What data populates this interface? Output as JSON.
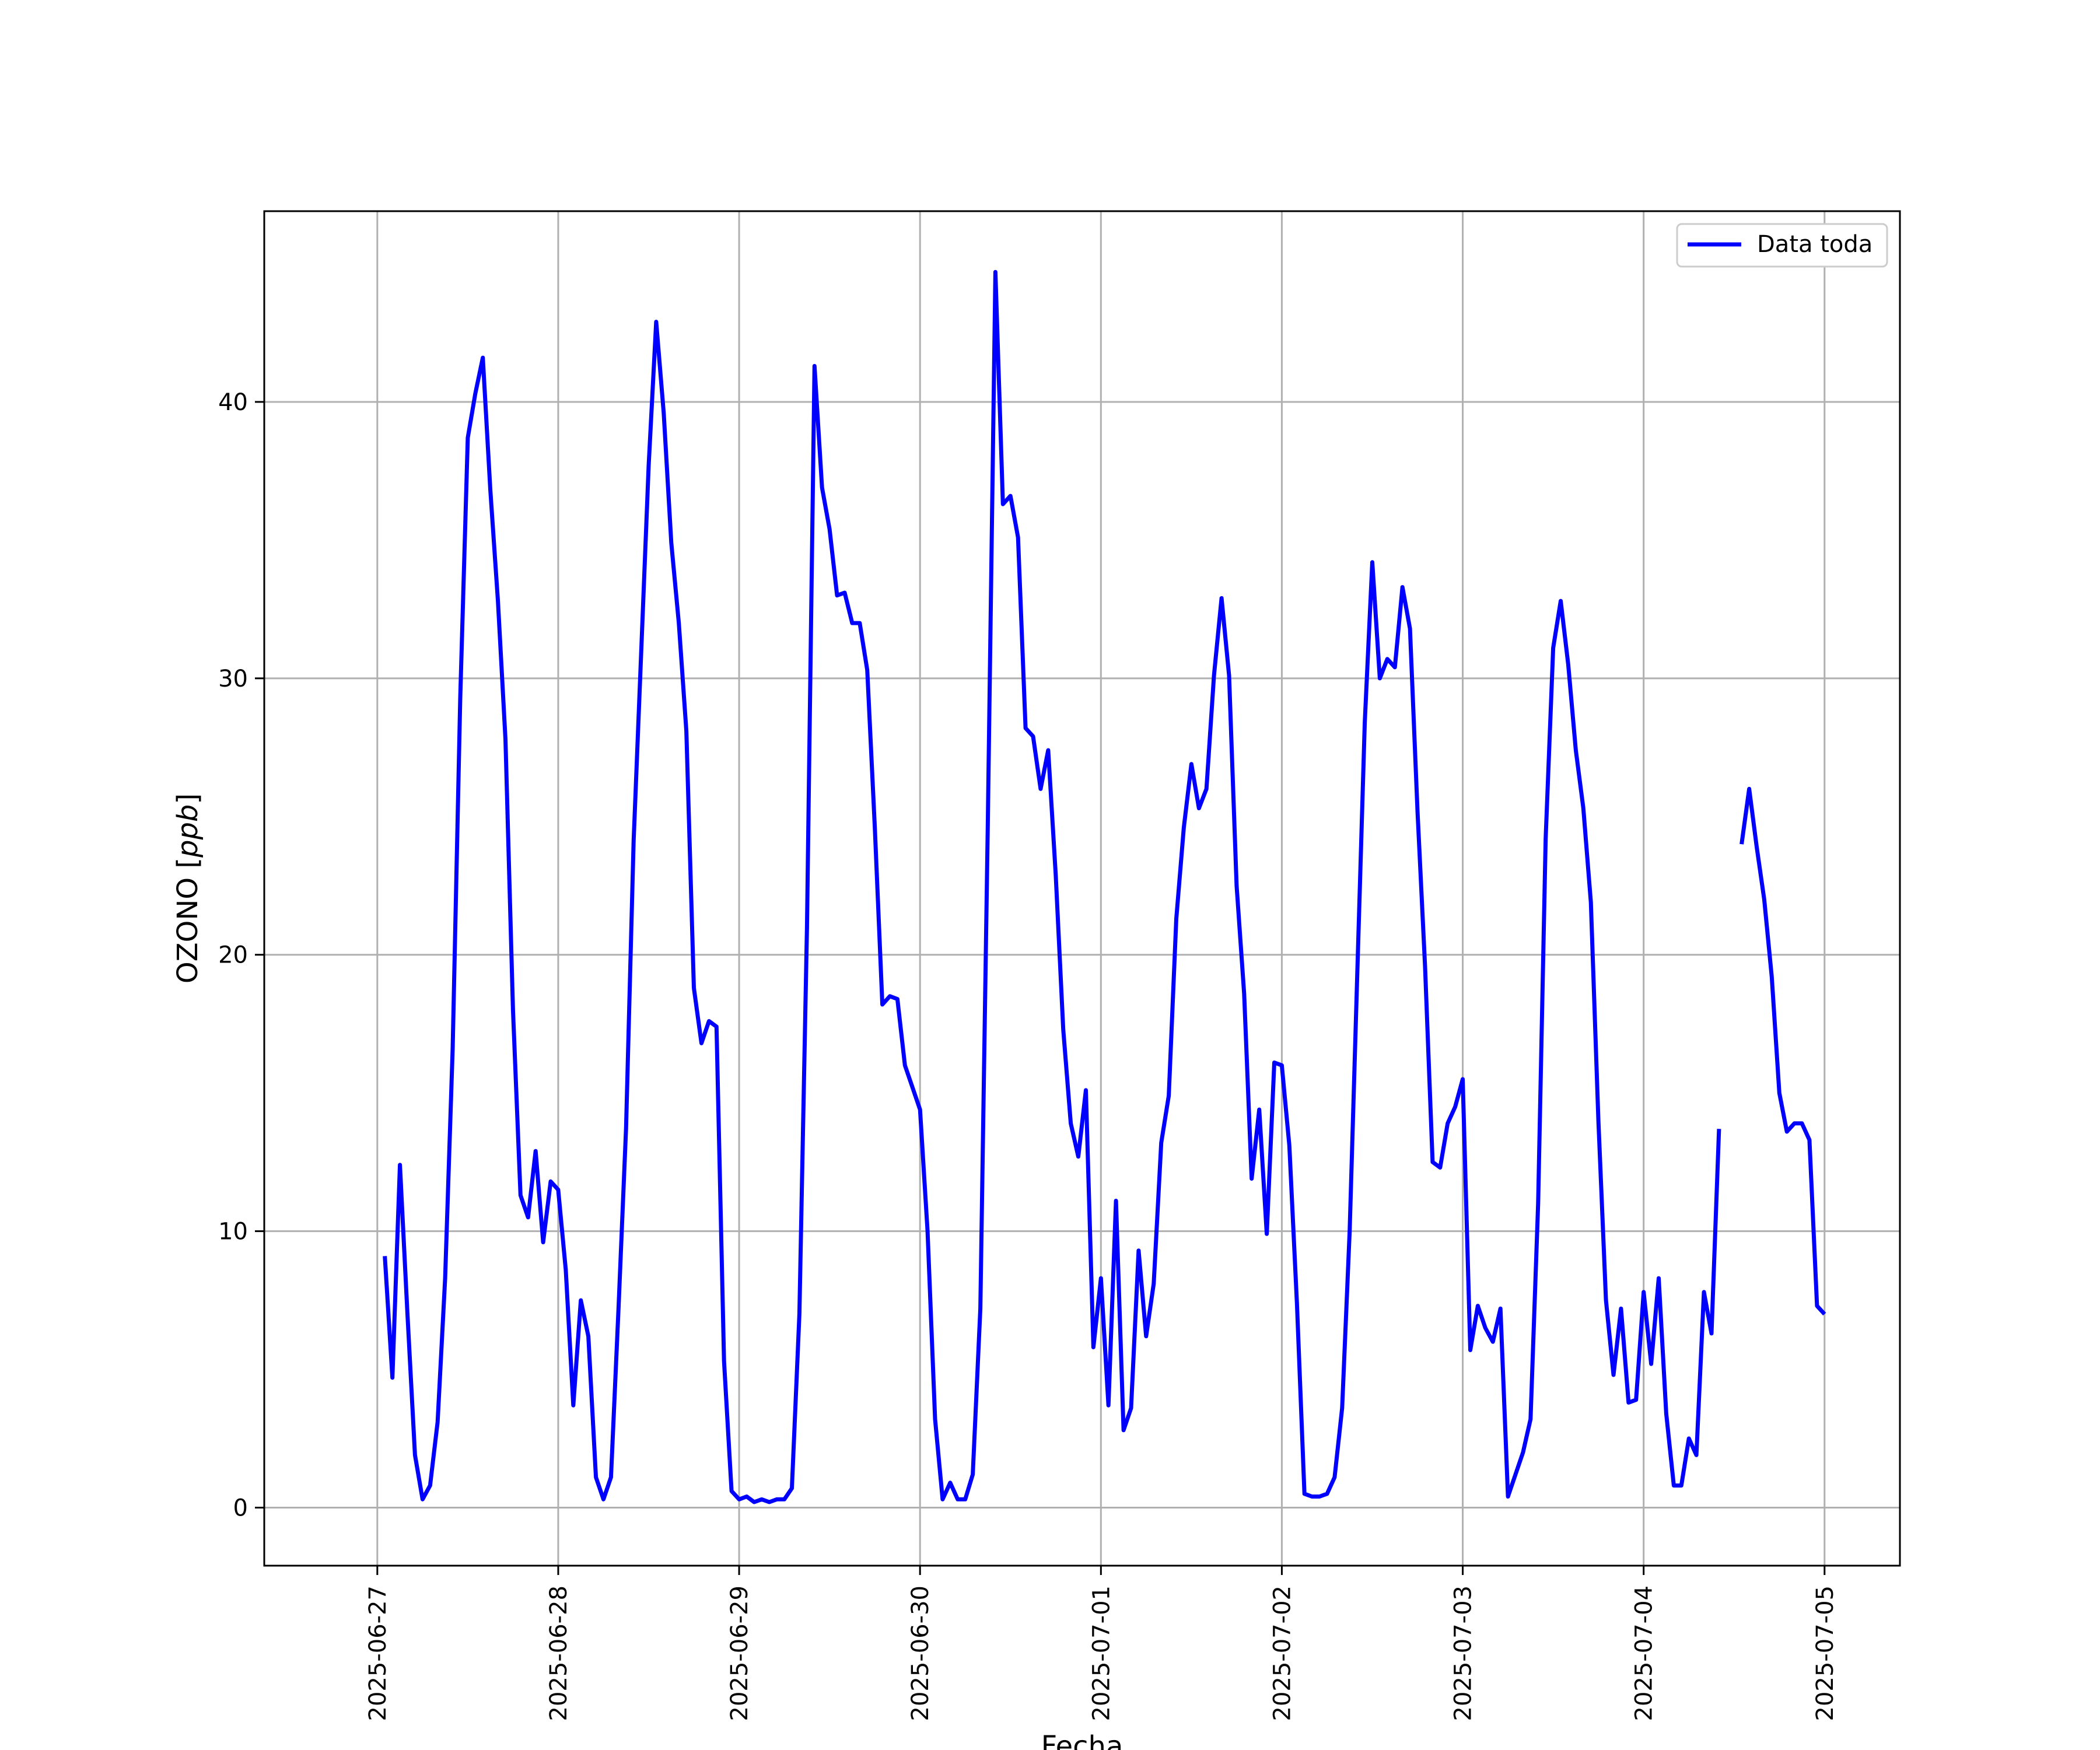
{
  "chart_data": {
    "type": "line",
    "title": "",
    "xlabel": "Fecha",
    "ylabel_text": "OZONO",
    "ylabel_unit": "ppb",
    "x_ticks": [
      "2025-06-27",
      "2025-06-28",
      "2025-06-29",
      "2025-06-30",
      "2025-07-01",
      "2025-07-02",
      "2025-07-03",
      "2025-07-04",
      "2025-07-05"
    ],
    "y_ticks": [
      0,
      10,
      20,
      30,
      40
    ],
    "xlim": [
      "2025-06-26 09:00",
      "2025-07-05 10:00"
    ],
    "ylim": [
      -2.1,
      46.9
    ],
    "grid": true,
    "legend_position": "top-right",
    "series": [
      {
        "name": "Data toda",
        "color": "#0000ff",
        "segments": [
          {
            "start": "2025-06-27 01:00",
            "step_hours": 1,
            "values": [
              9.1,
              4.7,
              12.4,
              7.0,
              1.9,
              0.3,
              0.8,
              3.1,
              8.3,
              16.6,
              29.3,
              38.7,
              40.3,
              41.6,
              36.8,
              32.8,
              27.8,
              18.0,
              11.3,
              10.5,
              12.9,
              9.6,
              11.8,
              11.5,
              8.6,
              3.7,
              7.5,
              6.2,
              1.1,
              0.3,
              1.1,
              7.2,
              13.7,
              24.1,
              30.9,
              37.7,
              42.9,
              39.6,
              34.9,
              32.0,
              28.1,
              18.8,
              16.8,
              17.6,
              17.4,
              5.3,
              0.6,
              0.3,
              0.4,
              0.2,
              0.3,
              0.2,
              0.3,
              0.3,
              0.7,
              7.0,
              21.0,
              41.3,
              36.9,
              35.4,
              33.0,
              33.1,
              32.0,
              32.0,
              30.3,
              24.6,
              18.2,
              18.5,
              18.4,
              16.0,
              15.2,
              14.4,
              10.0,
              3.2,
              0.3,
              0.9,
              0.3,
              0.3,
              1.2,
              7.2,
              24.9,
              44.7,
              36.3,
              36.6,
              35.1,
              28.2,
              27.9,
              26.0,
              27.4,
              22.9,
              17.3,
              13.9,
              12.7,
              15.1,
              5.8,
              8.3,
              3.7,
              11.1,
              2.8,
              3.6,
              9.3,
              6.2,
              8.1,
              13.2,
              14.9,
              21.3,
              24.6,
              26.9,
              25.3,
              26.0,
              30.1,
              32.9,
              30.1,
              22.5,
              18.6,
              11.9,
              14.4,
              9.9,
              16.1,
              16.0,
              13.1,
              7.4,
              0.5,
              0.4,
              0.4,
              0.5,
              1.1,
              3.6,
              10.0,
              19.2,
              28.4,
              34.2,
              30.0,
              30.7,
              30.4,
              33.3,
              31.8,
              25.2,
              19.6,
              12.5,
              12.3,
              13.9,
              14.5,
              15.5,
              5.7,
              7.3,
              6.5,
              6.0,
              7.2,
              0.4,
              1.2,
              2.0,
              3.2,
              11.0,
              24.2,
              31.1,
              32.8,
              30.5,
              27.4,
              25.3,
              21.9,
              14.0,
              7.5,
              4.8,
              7.2,
              3.8,
              3.9,
              7.8,
              5.2,
              8.3,
              3.4,
              0.8,
              0.8,
              2.5,
              1.9,
              7.8,
              6.3,
              13.7
            ]
          },
          {
            "start": "2025-07-04 13:00",
            "step_hours": 1,
            "values": [
              24.0,
              26.0,
              23.9,
              22.0,
              19.2,
              15.0,
              13.6,
              13.9,
              13.9,
              13.3,
              7.3,
              7.0
            ]
          }
        ]
      }
    ]
  }
}
